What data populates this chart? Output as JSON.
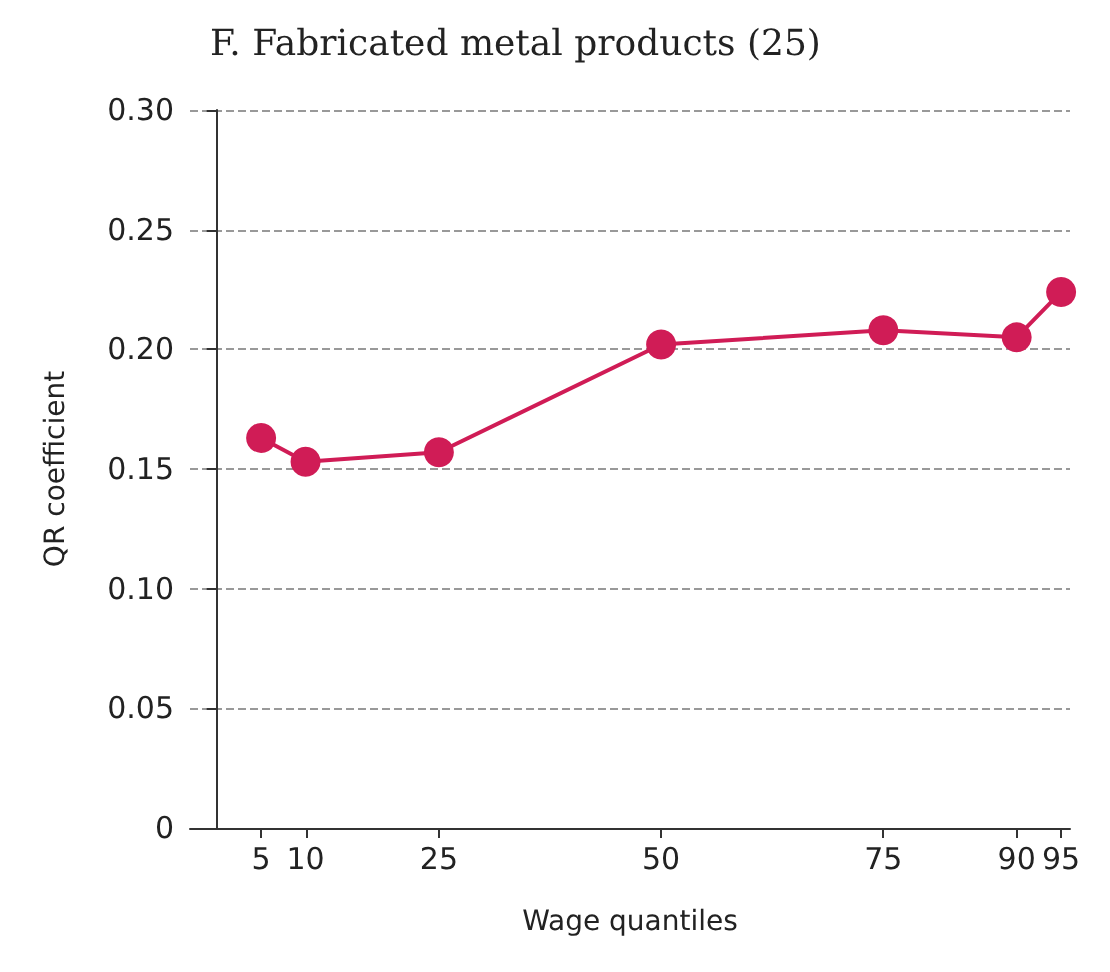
{
  "chart_data": {
    "type": "line",
    "title": "F. Fabricated metal products (25)",
    "xlabel": "Wage quantiles",
    "ylabel": "QR coefficient",
    "x": [
      5,
      10,
      25,
      50,
      75,
      90,
      95
    ],
    "series": [
      {
        "color": "#d01c56",
        "values": [
          0.163,
          0.153,
          0.157,
          0.202,
          0.208,
          0.205,
          0.224
        ]
      }
    ],
    "xlim": [
      -3,
      96
    ],
    "xticks": [
      5,
      10,
      25,
      50,
      75,
      90,
      95
    ],
    "ylim": [
      0,
      0.3
    ],
    "yticks": [
      {
        "value": 0,
        "label": "0"
      },
      {
        "value": 0.05,
        "label": "0.05"
      },
      {
        "value": 0.1,
        "label": "0.10"
      },
      {
        "value": 0.15,
        "label": "0.15"
      },
      {
        "value": 0.2,
        "label": "0.20"
      },
      {
        "value": 0.25,
        "label": "0.25"
      },
      {
        "value": 0.3,
        "label": "0.30"
      }
    ],
    "grid": "y",
    "marker": "circle",
    "line_style": "solid"
  }
}
